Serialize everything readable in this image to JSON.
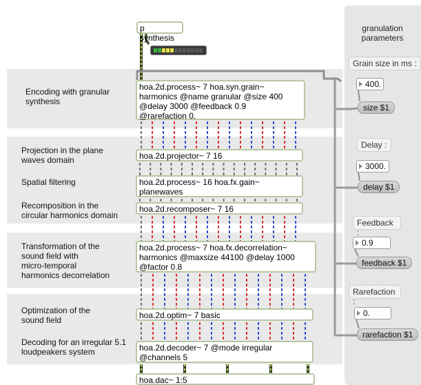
{
  "left_labels": [
    {
      "text": "Encoding with granular\nsynthesis"
    },
    {
      "text": "Projection in the plane\nwaves domain"
    },
    {
      "text": "Spatial filtering"
    },
    {
      "text": "Recomposition in the\ncircular harmonics domain"
    },
    {
      "text": "Transformation of the\nsound field with\nmicro-temporal\nharmonics decorrelation"
    },
    {
      "text": "Optimization of the\nsound field"
    },
    {
      "text": "Decoding for an irregular 5.1\nloudpeakers system"
    }
  ],
  "objects": {
    "synthesis": "p synthesis",
    "encoder": [
      "hoa.2d.process~ 7 hoa.syn.grain~",
      "harmonics @name granular @size 400",
      "@delay 3000 @feedback 0.9",
      "@rarefaction 0."
    ],
    "projector": "hoa.2d.projector~ 7 16",
    "filter": [
      "hoa.2d.process~ 16 hoa.fx.gain~",
      "planewaves"
    ],
    "recomposer": "hoa.2d.recomposer~ 7 16",
    "decorrelation": [
      "hoa.2d.process~ 7 hoa.fx.decorrelation~",
      "harmonics @maxsize 44100 @delay 1000",
      "@factor 0.8"
    ],
    "optim": "hoa.2d.optim~ 7 basic",
    "decoder": [
      "hoa.2d.decoder~ 7 @mode irregular",
      "@channels 5"
    ],
    "dac": "hoa.dac~ 1:5"
  },
  "params": {
    "title": "granulation\nparameters",
    "grain": {
      "label": "Grain size in ms :",
      "value": "400.",
      "msg": "size $1"
    },
    "delay": {
      "label": "Delay :",
      "value": "3000.",
      "msg": "delay $1"
    },
    "feedback": {
      "label": "Feedback :",
      "value": "0.9",
      "msg": "feedback $1"
    },
    "rarefaction": {
      "label": "Rarefaction :",
      "value": "0.",
      "msg": "rarefaction $1"
    }
  },
  "meter_level": 0.45
}
